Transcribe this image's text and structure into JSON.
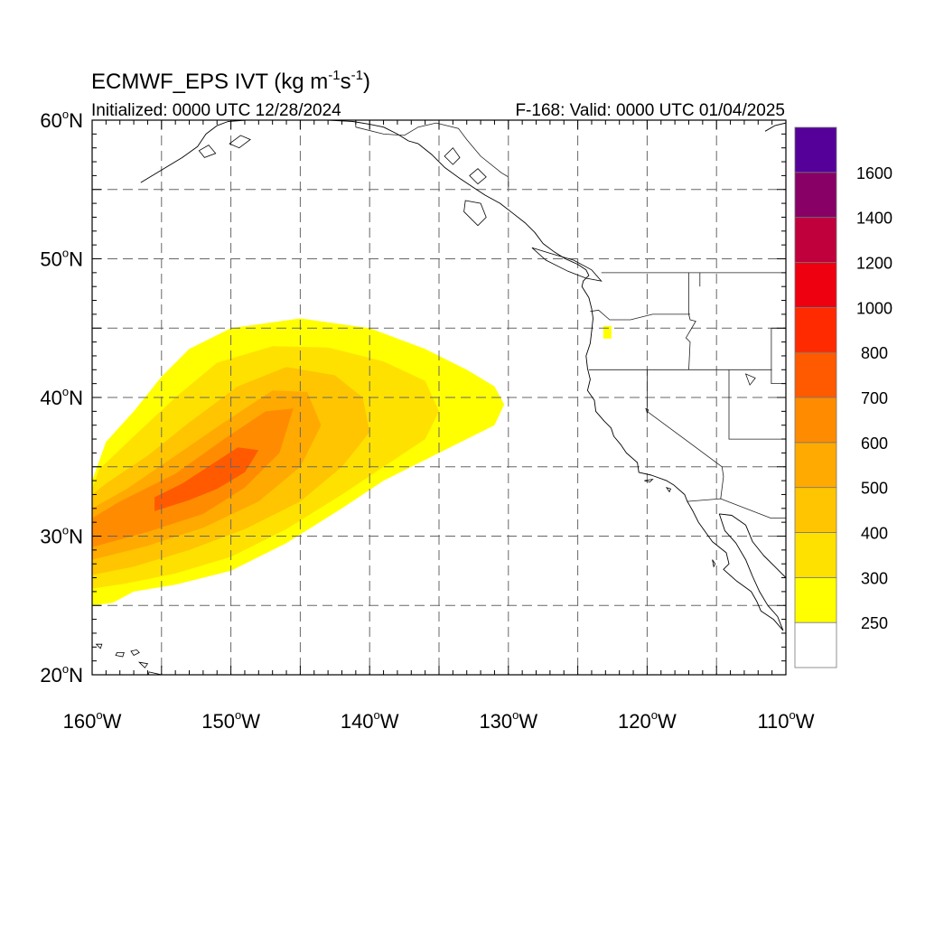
{
  "title": {
    "main": "ECMWF_EPS IVT (kg m",
    "sup1": "-1",
    "mid": "s",
    "sup2": "-1",
    "end": ")"
  },
  "subtitle_left": "Initialized: 0000 UTC 12/28/2024",
  "subtitle_right": "F-168: Valid: 0000 UTC 01/04/2025",
  "lat_labels": [
    {
      "value": 60,
      "text": "60",
      "suffix": "N"
    },
    {
      "value": 50,
      "text": "50",
      "suffix": "N"
    },
    {
      "value": 40,
      "text": "40",
      "suffix": "N"
    },
    {
      "value": 30,
      "text": "30",
      "suffix": "N"
    },
    {
      "value": 20,
      "text": "20",
      "suffix": "N"
    }
  ],
  "lon_labels": [
    {
      "value": -160,
      "text": "160",
      "suffix": "W"
    },
    {
      "value": -150,
      "text": "150",
      "suffix": "W"
    },
    {
      "value": -140,
      "text": "140",
      "suffix": "W"
    },
    {
      "value": -130,
      "text": "130",
      "suffix": "W"
    },
    {
      "value": -120,
      "text": "120",
      "suffix": "W"
    },
    {
      "value": -110,
      "text": "110",
      "suffix": "W"
    }
  ],
  "extent": {
    "lon_min": -160,
    "lon_max": -110,
    "lat_min": 20,
    "lat_max": 60
  },
  "colorbar": {
    "bins": [
      {
        "color": "#ffffff"
      },
      {
        "color": "#ffff00"
      },
      {
        "color": "#ffe100"
      },
      {
        "color": "#ffc500"
      },
      {
        "color": "#ffaa00"
      },
      {
        "color": "#ff8c00"
      },
      {
        "color": "#ff5a00"
      },
      {
        "color": "#ff2a00"
      },
      {
        "color": "#ee0011"
      },
      {
        "color": "#c0003c"
      },
      {
        "color": "#880066"
      },
      {
        "color": "#550099"
      }
    ],
    "labels": [
      "250",
      "300",
      "400",
      "500",
      "600",
      "700",
      "800",
      "1000",
      "1200",
      "1400",
      "1600"
    ]
  },
  "ivt_field": [
    {
      "level": 1,
      "points": [
        [
          -160,
          25
        ],
        [
          -158.5,
          25.2
        ],
        [
          -157,
          26
        ],
        [
          -154,
          26.5
        ],
        [
          -150,
          27.5
        ],
        [
          -146,
          29.5
        ],
        [
          -142,
          32
        ],
        [
          -139,
          34
        ],
        [
          -135,
          36
        ],
        [
          -131,
          38
        ],
        [
          -130.3,
          39.5
        ],
        [
          -131,
          40.8
        ],
        [
          -133,
          42
        ],
        [
          -136,
          43.5
        ],
        [
          -140,
          45
        ],
        [
          -145,
          45.7
        ],
        [
          -150,
          45
        ],
        [
          -153,
          43.5
        ],
        [
          -155,
          41.5
        ],
        [
          -157,
          39
        ],
        [
          -159,
          36.8
        ],
        [
          -160,
          34
        ]
      ]
    },
    {
      "level": 2,
      "points": [
        [
          -160,
          26.2
        ],
        [
          -157.5,
          26.6
        ],
        [
          -154,
          27.3
        ],
        [
          -150,
          28.5
        ],
        [
          -146,
          30.5
        ],
        [
          -142,
          33
        ],
        [
          -139,
          35
        ],
        [
          -136,
          37
        ],
        [
          -135,
          39
        ],
        [
          -136,
          41.2
        ],
        [
          -139,
          42.6
        ],
        [
          -143,
          43.6
        ],
        [
          -147,
          43.7
        ],
        [
          -151,
          42.5
        ],
        [
          -154,
          40
        ],
        [
          -157,
          37.2
        ],
        [
          -159.5,
          34.8
        ],
        [
          -160,
          33.4
        ]
      ]
    },
    {
      "level": 3,
      "points": [
        [
          -160,
          27.2
        ],
        [
          -157,
          27.8
        ],
        [
          -153,
          29
        ],
        [
          -149,
          30.5
        ],
        [
          -145,
          32.5
        ],
        [
          -142,
          35
        ],
        [
          -140,
          37.5
        ],
        [
          -140.5,
          40
        ],
        [
          -142.5,
          41.6
        ],
        [
          -146,
          42.2
        ],
        [
          -149.5,
          40.8
        ],
        [
          -153,
          38.2
        ],
        [
          -156,
          35.8
        ],
        [
          -159,
          33.8
        ],
        [
          -160,
          33
        ]
      ]
    },
    {
      "level": 4,
      "points": [
        [
          -160,
          28.3
        ],
        [
          -156,
          29.3
        ],
        [
          -152,
          30.6
        ],
        [
          -148,
          32.5
        ],
        [
          -145,
          35
        ],
        [
          -143.5,
          38
        ],
        [
          -144.5,
          40.4
        ],
        [
          -147,
          40.5
        ],
        [
          -150.5,
          38.2
        ],
        [
          -154,
          35.8
        ],
        [
          -157.5,
          33.4
        ],
        [
          -160,
          32
        ]
      ]
    },
    {
      "level": 5,
      "points": [
        [
          -160,
          29.2
        ],
        [
          -156,
          30.3
        ],
        [
          -152,
          31.6
        ],
        [
          -149,
          33.5
        ],
        [
          -146.5,
          36
        ],
        [
          -145.5,
          39.2
        ],
        [
          -147.5,
          39
        ],
        [
          -150.5,
          37
        ],
        [
          -154,
          34.5
        ],
        [
          -158,
          32.5
        ],
        [
          -160,
          31.3
        ]
      ]
    },
    {
      "level": 6,
      "points": [
        [
          -155.5,
          31.8
        ],
        [
          -153,
          32.6
        ],
        [
          -151,
          33.4
        ],
        [
          -149,
          34.6
        ],
        [
          -148,
          36.2
        ],
        [
          -149.5,
          36.4
        ],
        [
          -151.5,
          35.1
        ],
        [
          -153.5,
          33.8
        ],
        [
          -155.5,
          32.8
        ]
      ]
    }
  ],
  "ivt_small_patch": {
    "level": 1,
    "lon": -122.9,
    "lat": 44.7
  },
  "coast_west_na": [
    [
      -136.5,
      58.3
    ],
    [
      -135.5,
      57.5
    ],
    [
      -134.6,
      56.6
    ],
    [
      -133.5,
      55.8
    ],
    [
      -132.6,
      55.2
    ],
    [
      -131.7,
      54.6
    ],
    [
      -130.6,
      54.0
    ],
    [
      -129.7,
      53.3
    ],
    [
      -128.8,
      52.6
    ],
    [
      -128.1,
      51.9
    ],
    [
      -127.5,
      51.1
    ],
    [
      -126.7,
      50.5
    ],
    [
      -125.9,
      50.0
    ],
    [
      -125.0,
      49.6
    ],
    [
      -124.4,
      49.2
    ],
    [
      -124.2,
      48.8
    ],
    [
      -124.6,
      48.4
    ],
    [
      -124.7,
      48.0
    ],
    [
      -124.2,
      47.2
    ],
    [
      -124.0,
      46.4
    ],
    [
      -123.9,
      45.7
    ],
    [
      -124.0,
      44.8
    ],
    [
      -124.1,
      43.9
    ],
    [
      -124.4,
      43.0
    ],
    [
      -124.3,
      42.1
    ],
    [
      -124.1,
      41.3
    ],
    [
      -124.3,
      40.5
    ],
    [
      -123.8,
      39.8
    ],
    [
      -123.7,
      39.0
    ],
    [
      -123.1,
      38.3
    ],
    [
      -122.6,
      37.8
    ],
    [
      -122.4,
      37.2
    ],
    [
      -121.9,
      36.6
    ],
    [
      -121.5,
      36.0
    ],
    [
      -120.7,
      35.3
    ],
    [
      -120.6,
      34.6
    ],
    [
      -119.7,
      34.4
    ],
    [
      -118.6,
      34.0
    ],
    [
      -118.1,
      33.7
    ],
    [
      -117.3,
      33.0
    ],
    [
      -117.1,
      32.5
    ],
    [
      -116.7,
      31.8
    ],
    [
      -116.3,
      31.0
    ],
    [
      -115.8,
      30.3
    ],
    [
      -115.3,
      29.6
    ],
    [
      -114.3,
      28.8
    ],
    [
      -114.1,
      28.0
    ],
    [
      -114.5,
      27.6
    ],
    [
      -113.6,
      26.8
    ],
    [
      -112.5,
      26.0
    ],
    [
      -112.1,
      25.3
    ],
    [
      -111.8,
      24.6
    ],
    [
      -110.9,
      24.0
    ],
    [
      -110.2,
      23.2
    ]
  ],
  "coast_baja_east": [
    [
      -110.2,
      23.2
    ],
    [
      -110.6,
      24.2
    ],
    [
      -111.3,
      25.0
    ],
    [
      -111.9,
      26.0
    ],
    [
      -112.4,
      27.1
    ],
    [
      -112.9,
      28.3
    ],
    [
      -113.6,
      29.5
    ],
    [
      -114.4,
      30.4
    ],
    [
      -114.8,
      31.6
    ]
  ],
  "coast_mainland_mex": [
    [
      -114.8,
      31.6
    ],
    [
      -113.9,
      31.5
    ],
    [
      -112.9,
      30.8
    ],
    [
      -112.4,
      29.6
    ],
    [
      -111.6,
      28.6
    ],
    [
      -110.9,
      27.9
    ],
    [
      -110.0,
      27.0
    ],
    [
      -110.0,
      26.0
    ]
  ],
  "coast_alaska": [
    [
      -156.5,
      55.5
    ],
    [
      -155.0,
      56.4
    ],
    [
      -153.5,
      57.3
    ],
    [
      -152.4,
      58.1
    ],
    [
      -151.8,
      59.0
    ],
    [
      -151.0,
      59.6
    ],
    [
      -150.2,
      59.9
    ],
    [
      -148.9,
      60.0
    ]
  ],
  "coast_alaska_2": [
    [
      -143.0,
      60.0
    ],
    [
      -141.2,
      59.9
    ],
    [
      -140.0,
      59.7
    ],
    [
      -139.0,
      59.5
    ],
    [
      -138.0,
      59.0
    ],
    [
      -137.2,
      58.5
    ],
    [
      -136.5,
      58.3
    ]
  ],
  "coast_hudson": [
    [
      -111.5,
      59.2
    ],
    [
      -110.8,
      59.6
    ],
    [
      -110.0,
      59.8
    ]
  ],
  "islands": [
    [
      [
        -150.1,
        58.3
      ],
      [
        -149.3,
        58.9
      ],
      [
        -148.6,
        58.6
      ],
      [
        -149.4,
        58.0
      ]
    ],
    [
      [
        -152.3,
        57.8
      ],
      [
        -151.6,
        58.2
      ],
      [
        -151.1,
        57.6
      ],
      [
        -151.9,
        57.3
      ]
    ],
    [
      [
        -133.1,
        54.2
      ],
      [
        -132.0,
        54.0
      ],
      [
        -131.6,
        53.0
      ],
      [
        -132.2,
        52.4
      ],
      [
        -133.2,
        53.4
      ]
    ],
    [
      [
        -128.3,
        50.8
      ],
      [
        -127.0,
        50.4
      ],
      [
        -125.3,
        49.9
      ],
      [
        -124.0,
        49.2
      ],
      [
        -123.3,
        48.4
      ],
      [
        -124.4,
        48.6
      ],
      [
        -125.7,
        49.1
      ],
      [
        -127.3,
        49.9
      ]
    ],
    [
      [
        -132.8,
        56.0
      ],
      [
        -132.2,
        56.5
      ],
      [
        -131.6,
        55.9
      ],
      [
        -132.2,
        55.4
      ]
    ],
    [
      [
        -134.6,
        57.4
      ],
      [
        -134.0,
        58.0
      ],
      [
        -133.5,
        57.3
      ],
      [
        -134.0,
        56.8
      ]
    ],
    [
      [
        -118.6,
        33.5
      ],
      [
        -118.3,
        33.4
      ],
      [
        -118.4,
        33.2
      ]
    ],
    [
      [
        -120.2,
        34.0
      ],
      [
        -119.6,
        34.1
      ],
      [
        -119.8,
        33.9
      ]
    ],
    [
      [
        -115.3,
        28.3
      ],
      [
        -115.1,
        28.0
      ],
      [
        -115.2,
        27.8
      ]
    ],
    [
      [
        -157.2,
        21.7
      ],
      [
        -156.8,
        21.8
      ],
      [
        -156.6,
        21.6
      ],
      [
        -157.0,
        21.4
      ]
    ],
    [
      [
        -158.2,
        21.6
      ],
      [
        -157.7,
        21.6
      ],
      [
        -157.8,
        21.3
      ],
      [
        -158.3,
        21.4
      ]
    ],
    [
      [
        -159.7,
        22.2
      ],
      [
        -159.3,
        22.2
      ],
      [
        -159.4,
        21.9
      ]
    ],
    [
      [
        -156.6,
        20.9
      ],
      [
        -156.0,
        20.8
      ],
      [
        -156.2,
        20.5
      ]
    ],
    [
      [
        -155.9,
        20.2
      ],
      [
        -155.0,
        20.0
      ],
      [
        -154.8,
        19.5
      ],
      [
        -155.5,
        19.2
      ],
      [
        -156.0,
        19.7
      ]
    ]
  ],
  "borders": [
    [
      [
        -141.0,
        60.0
      ],
      [
        -141.0,
        59.5
      ]
    ],
    [
      [
        -141.0,
        59.5
      ],
      [
        -139.0,
        59.0
      ],
      [
        -137.5,
        58.9
      ],
      [
        -136.5,
        59.5
      ],
      [
        -135.2,
        59.8
      ],
      [
        -133.6,
        59.4
      ],
      [
        -133.0,
        58.6
      ],
      [
        -132.0,
        57.4
      ],
      [
        -130.5,
        56.2
      ],
      [
        -130.0,
        55.9
      ],
      [
        -130.0,
        55.2
      ]
    ],
    [
      [
        -123.3,
        49.0
      ],
      [
        -110.0,
        49.0
      ]
    ],
    [
      [
        -124.1,
        46.2
      ],
      [
        -123.5,
        46.3
      ],
      [
        -122.7,
        45.6
      ],
      [
        -121.2,
        45.6
      ],
      [
        -119.6,
        46.0
      ],
      [
        -116.9,
        46.0
      ]
    ],
    [
      [
        -117.0,
        49.0
      ],
      [
        -117.0,
        46.0
      ],
      [
        -116.9,
        45.6
      ],
      [
        -116.5,
        45.5
      ],
      [
        -117.2,
        44.3
      ],
      [
        -116.9,
        44.0
      ],
      [
        -117.0,
        42.0
      ]
    ],
    [
      [
        -124.2,
        42.0
      ],
      [
        -111.0,
        42.0
      ]
    ],
    [
      [
        -120.0,
        42.0
      ],
      [
        -120.0,
        39.0
      ],
      [
        -114.6,
        35.0
      ],
      [
        -114.5,
        34.3
      ],
      [
        -114.7,
        32.7
      ]
    ],
    [
      [
        -114.1,
        42.0
      ],
      [
        -114.1,
        37.0
      ],
      [
        -110.0,
        37.0
      ]
    ],
    [
      [
        -111.05,
        45.0
      ],
      [
        -110.0,
        45.0
      ]
    ],
    [
      [
        -111.05,
        45.0
      ],
      [
        -111.05,
        41.0
      ],
      [
        -110.0,
        41.0
      ]
    ],
    [
      [
        -117.1,
        32.5
      ],
      [
        -114.7,
        32.7
      ],
      [
        -111.1,
        31.3
      ],
      [
        -110.0,
        31.3
      ]
    ],
    [
      [
        -116.2,
        48.0
      ],
      [
        -116.2,
        49.0
      ]
    ]
  ],
  "lakes": [
    [
      [
        -112.9,
        41.7
      ],
      [
        -112.2,
        41.4
      ],
      [
        -112.6,
        40.9
      ]
    ],
    [
      [
        -120.1,
        39.2
      ],
      [
        -119.9,
        39.1
      ],
      [
        -120.0,
        38.9
      ]
    ]
  ]
}
